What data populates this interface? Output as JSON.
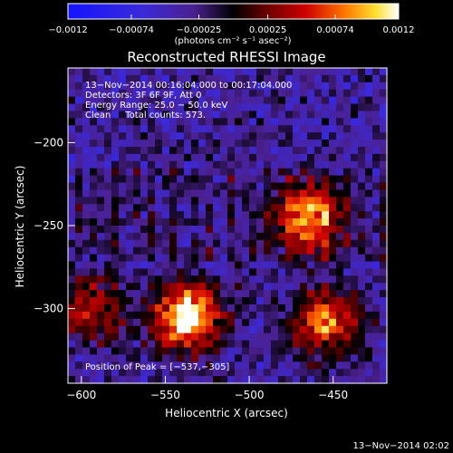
{
  "chart_data": {
    "type": "heatmap",
    "title": "Reconstructed RHESSI Image",
    "xlabel": "Heliocentric X (arcsec)",
    "ylabel": "Heliocentric Y (arcsec)",
    "xlim": [
      -608,
      -418
    ],
    "ylim": [
      -345,
      -155
    ],
    "x_ticks": [
      -600,
      -550,
      -500,
      -450
    ],
    "y_ticks": [
      -200,
      -250,
      -300
    ],
    "x_tick_labels": [
      "−600",
      "−550",
      "−500",
      "−450"
    ],
    "y_tick_labels": [
      "−200",
      "−250",
      "−300"
    ],
    "colorbar": {
      "min": -0.0012,
      "max": 0.0012,
      "ticks": [
        -0.0012,
        -0.00074,
        -0.00025,
        0.00025,
        0.00074,
        0.0012
      ],
      "tick_labels": [
        "−0.0012",
        "−0.00074",
        "−0.00025",
        "0.00025",
        "0.00074",
        "0.0012"
      ],
      "units_label": "(photons cm⁻² s⁻¹ asec⁻²)"
    },
    "sources": [
      {
        "x": -537,
        "y": -305,
        "peak": 0.0012
      },
      {
        "x": -465,
        "y": -245,
        "peak": 0.0009
      },
      {
        "x": -455,
        "y": -308,
        "peak": 0.00085
      },
      {
        "x": -595,
        "y": -300,
        "peak": 0.0006
      }
    ],
    "annotations": {
      "time": "13−Nov−2014 00:16:04.000 to 00:17:04.000",
      "detectors": "Detectors: 3F 6F 9F, Att 0",
      "energy": "Energy Range: 25.0 − 50.0 keV",
      "clean": "Clean     Total counts: 573.",
      "peak": "Position of Peak = [−537,−305]"
    },
    "grid": false
  },
  "footer": {
    "timestamp": "13−Nov−2014 02:02"
  },
  "colors": {
    "background": "#000000",
    "text": "#ffffff"
  }
}
